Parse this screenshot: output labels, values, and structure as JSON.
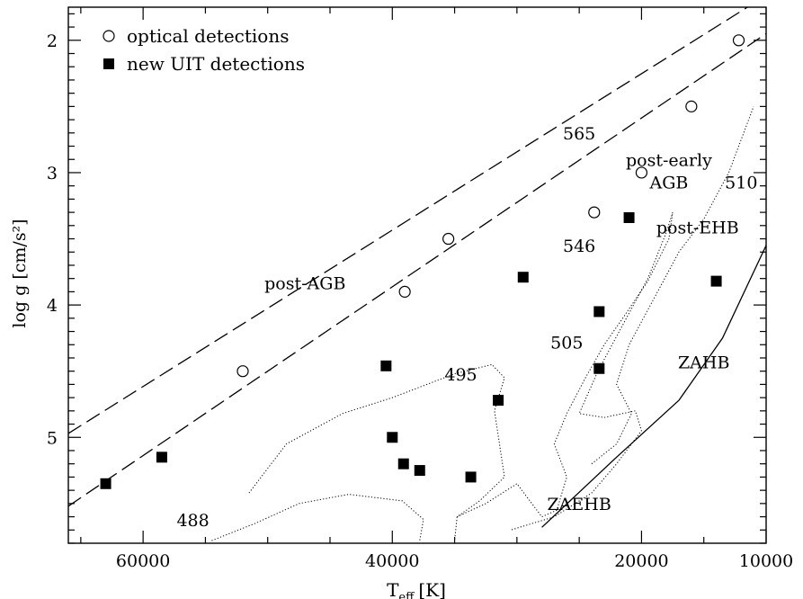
{
  "chart_data": {
    "type": "scatter",
    "title": "",
    "xlabel": "T",
    "xlabel_sub": "eff",
    "xlabel_unit": "[K]",
    "ylabel": "log g [cm/s²]",
    "xlim": [
      66000,
      10000
    ],
    "ylim": [
      5.8,
      1.75
    ],
    "x_reversed": true,
    "y_reversed": true,
    "x_ticks": [
      60000,
      40000,
      20000,
      10000
    ],
    "x_tick_labels": [
      "60000",
      "40000",
      "20000",
      "10000"
    ],
    "y_ticks": [
      2,
      3,
      4,
      5
    ],
    "y_tick_labels": [
      "2",
      "3",
      "4",
      "5"
    ],
    "grid": false,
    "legend_position": "top-left",
    "series": [
      {
        "name": "optical detections",
        "marker": "open-circle",
        "points": [
          {
            "x": 52000,
            "y": 4.5
          },
          {
            "x": 39000,
            "y": 3.9
          },
          {
            "x": 35500,
            "y": 3.5
          },
          {
            "x": 23800,
            "y": 3.3
          },
          {
            "x": 20000,
            "y": 3.0
          },
          {
            "x": 16000,
            "y": 2.5
          },
          {
            "x": 12200,
            "y": 2.0
          }
        ]
      },
      {
        "name": "new UIT detections",
        "marker": "filled-square",
        "points": [
          {
            "x": 63000,
            "y": 5.35
          },
          {
            "x": 58500,
            "y": 5.15
          },
          {
            "x": 40500,
            "y": 4.46
          },
          {
            "x": 40000,
            "y": 5.0
          },
          {
            "x": 39100,
            "y": 5.2
          },
          {
            "x": 37800,
            "y": 5.25
          },
          {
            "x": 33700,
            "y": 5.3
          },
          {
            "x": 31500,
            "y": 4.72
          },
          {
            "x": 29500,
            "y": 3.79
          },
          {
            "x": 23400,
            "y": 4.05
          },
          {
            "x": 23400,
            "y": 4.48
          },
          {
            "x": 21000,
            "y": 3.34
          },
          {
            "x": 14000,
            "y": 3.82
          }
        ]
      }
    ],
    "reference_lines": [
      {
        "style": "dashed",
        "points": [
          {
            "x": 66000,
            "y": 4.97
          },
          {
            "x": 11500,
            "y": 1.75
          }
        ]
      },
      {
        "style": "dashed",
        "points": [
          {
            "x": 66000,
            "y": 5.52
          },
          {
            "x": 10000,
            "y": 1.95
          }
        ]
      }
    ],
    "tracks": [
      {
        "name": "ZAHB",
        "style": "solid",
        "points": [
          {
            "x": 28000,
            "y": 5.68
          },
          {
            "x": 22000,
            "y": 5.15
          },
          {
            "x": 17000,
            "y": 4.72
          },
          {
            "x": 13500,
            "y": 4.25
          },
          {
            "x": 10000,
            "y": 3.55
          }
        ]
      },
      {
        "name": "488",
        "style": "dotted",
        "points": [
          {
            "x": 54500,
            "y": 5.78
          },
          {
            "x": 51000,
            "y": 5.65
          },
          {
            "x": 47500,
            "y": 5.5
          },
          {
            "x": 43500,
            "y": 5.43
          },
          {
            "x": 39200,
            "y": 5.48
          },
          {
            "x": 37500,
            "y": 5.62
          },
          {
            "x": 37800,
            "y": 5.78
          }
        ]
      },
      {
        "name": "495",
        "style": "dotted",
        "points": [
          {
            "x": 51500,
            "y": 5.42
          },
          {
            "x": 48500,
            "y": 5.05
          },
          {
            "x": 44000,
            "y": 4.82
          },
          {
            "x": 40000,
            "y": 4.7
          },
          {
            "x": 35000,
            "y": 4.52
          },
          {
            "x": 32000,
            "y": 4.45
          },
          {
            "x": 31000,
            "y": 4.55
          },
          {
            "x": 31800,
            "y": 4.8
          },
          {
            "x": 31000,
            "y": 5.3
          },
          {
            "x": 33000,
            "y": 5.48
          },
          {
            "x": 34800,
            "y": 5.6
          },
          {
            "x": 35000,
            "y": 5.78
          }
        ]
      },
      {
        "name": "505",
        "style": "dotted",
        "points": [
          {
            "x": 34800,
            "y": 5.6
          },
          {
            "x": 32500,
            "y": 5.5
          },
          {
            "x": 30000,
            "y": 5.35
          },
          {
            "x": 28000,
            "y": 5.6
          },
          {
            "x": 26800,
            "y": 5.55
          },
          {
            "x": 26000,
            "y": 5.3
          },
          {
            "x": 27000,
            "y": 5.05
          },
          {
            "x": 26000,
            "y": 4.82
          },
          {
            "x": 24500,
            "y": 4.55
          },
          {
            "x": 23000,
            "y": 4.3
          },
          {
            "x": 21500,
            "y": 4.1
          },
          {
            "x": 19500,
            "y": 3.82
          },
          {
            "x": 17800,
            "y": 3.5
          },
          {
            "x": 17500,
            "y": 3.3
          },
          {
            "x": 18000,
            "y": 3.45
          },
          {
            "x": 19500,
            "y": 3.8
          },
          {
            "x": 21500,
            "y": 4.15
          },
          {
            "x": 23500,
            "y": 4.5
          },
          {
            "x": 25000,
            "y": 4.82
          },
          {
            "x": 23000,
            "y": 4.85
          },
          {
            "x": 20500,
            "y": 4.8
          },
          {
            "x": 20000,
            "y": 4.95
          },
          {
            "x": 22000,
            "y": 5.2
          },
          {
            "x": 24000,
            "y": 5.42
          },
          {
            "x": 27000,
            "y": 5.6
          },
          {
            "x": 30500,
            "y": 5.7
          }
        ]
      },
      {
        "name": "510",
        "style": "dotted",
        "points": [
          {
            "x": 24000,
            "y": 5.2
          },
          {
            "x": 22000,
            "y": 5.05
          },
          {
            "x": 20800,
            "y": 4.82
          },
          {
            "x": 22000,
            "y": 4.6
          },
          {
            "x": 21000,
            "y": 4.3
          },
          {
            "x": 19000,
            "y": 3.95
          },
          {
            "x": 17000,
            "y": 3.6
          },
          {
            "x": 15000,
            "y": 3.35
          },
          {
            "x": 13000,
            "y": 3.0
          },
          {
            "x": 11000,
            "y": 2.5
          }
        ]
      }
    ],
    "annotations": [
      {
        "text": "565",
        "x": 25000,
        "y": 2.75
      },
      {
        "text": "546",
        "x": 25000,
        "y": 3.6
      },
      {
        "text": "post-early",
        "x": 17800,
        "y": 2.95
      },
      {
        "text": "AGB",
        "x": 17800,
        "y": 3.12
      },
      {
        "text": "510",
        "x": 12000,
        "y": 3.12
      },
      {
        "text": "post-EHB",
        "x": 15500,
        "y": 3.46
      },
      {
        "text": "post-AGB",
        "x": 47000,
        "y": 3.88
      },
      {
        "text": "505",
        "x": 26000,
        "y": 4.33
      },
      {
        "text": "495",
        "x": 34500,
        "y": 4.57
      },
      {
        "text": "ZAHB",
        "x": 15000,
        "y": 4.48
      },
      {
        "text": "ZAEHB",
        "x": 25000,
        "y": 5.55
      },
      {
        "text": "488",
        "x": 56000,
        "y": 5.67
      }
    ]
  }
}
